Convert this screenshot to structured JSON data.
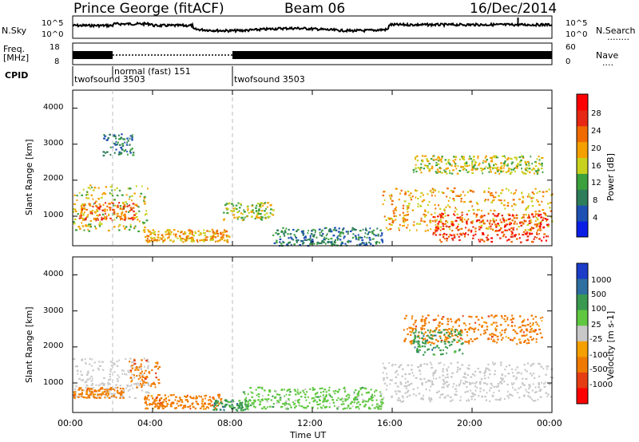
{
  "header": {
    "site": "Prince George (fitACF)",
    "beam": "Beam 06",
    "date": "16/Dec/2014"
  },
  "noise_panel": {
    "left_label": "N.Sky",
    "right_label": "N.Search",
    "right_dots": "........",
    "ticks_left": [
      "10^5",
      "10^0"
    ],
    "ticks_right": [
      "10^5",
      "10^0"
    ]
  },
  "freq_panel": {
    "left_label_1": "Freq.",
    "left_label_2": "[MHz]",
    "right_label": "Nave",
    "right_dots": "....",
    "ticks_left": [
      "18",
      "8"
    ],
    "ticks_right": [
      "60",
      "0"
    ]
  },
  "cpid": {
    "label": "CPID",
    "segments": [
      {
        "name": "twofsound 3503"
      },
      {
        "name": "normal (fast) 151"
      },
      {
        "name": "twofsound 3503"
      }
    ]
  },
  "power_panel": {
    "ylabel": "Slant Range [km]",
    "yticks": [
      "1000",
      "2000",
      "3000",
      "4000"
    ],
    "colorbar_label": "Power [dB]",
    "colorbar_ticks": [
      "4",
      "8",
      "12",
      "16",
      "20",
      "24",
      "28"
    ],
    "colors": [
      "#0a1ee6",
      "#1e50b4",
      "#2d7d5a",
      "#3ca03c",
      "#c8d21e",
      "#f5a000",
      "#f06a00",
      "#e62814",
      "#ff0000"
    ]
  },
  "velocity_panel": {
    "ylabel": "Slant Range [km]",
    "yticks": [
      "1000",
      "2000",
      "3000",
      "4000"
    ],
    "colorbar_label": "Velocity [m s-1]",
    "colorbar_ticks": [
      "1000",
      "500",
      "100",
      "25",
      "-25",
      "-100",
      "-500",
      "-1000"
    ],
    "colors": [
      "#1a3cc8",
      "#2e6ea0",
      "#3a9a50",
      "#60c840",
      "#c8c8c8",
      "#f5a000",
      "#f07a00",
      "#e63c14",
      "#ff0000"
    ]
  },
  "xaxis": {
    "label": "Time UT",
    "ticks": [
      "00:00",
      "04:00",
      "08:00",
      "12:00",
      "16:00",
      "20:00",
      "00:00"
    ]
  },
  "chart_data": [
    {
      "type": "heatmap",
      "title": "Power",
      "ylabel": "Slant Range [km]",
      "xlabel": "Time UT",
      "x_range_hours": [
        0,
        24
      ],
      "y_range_km": [
        180,
        4500
      ],
      "colorbar": {
        "label": "Power [dB]",
        "ticks": [
          4,
          8,
          12,
          16,
          20,
          24,
          28
        ]
      },
      "echo_regions": [
        {
          "t_start": 0.0,
          "t_end": 3.8,
          "range_start": 600,
          "range_end": 1900,
          "power_db": 16
        },
        {
          "t_start": 0.3,
          "t_end": 3.2,
          "range_start": 900,
          "range_end": 1400,
          "power_db": 24
        },
        {
          "t_start": 1.5,
          "t_end": 3.0,
          "range_start": 2700,
          "range_end": 3300,
          "power_db": 8
        },
        {
          "t_start": 3.5,
          "t_end": 7.8,
          "range_start": 300,
          "range_end": 650,
          "power_db": 20
        },
        {
          "t_start": 7.5,
          "t_end": 10.0,
          "range_start": 900,
          "range_end": 1400,
          "power_db": 14
        },
        {
          "t_start": 10.0,
          "t_end": 15.5,
          "range_start": 200,
          "range_end": 700,
          "power_db": 8
        },
        {
          "t_start": 15.5,
          "t_end": 24.0,
          "range_start": 600,
          "range_end": 1800,
          "power_db": 18
        },
        {
          "t_start": 18.0,
          "t_end": 23.8,
          "range_start": 300,
          "range_end": 1100,
          "power_db": 28
        },
        {
          "t_start": 17.0,
          "t_end": 23.5,
          "range_start": 2200,
          "range_end": 2700,
          "power_db": 16
        }
      ]
    },
    {
      "type": "heatmap",
      "title": "Velocity",
      "ylabel": "Slant Range [km]",
      "xlabel": "Time UT",
      "x_range_hours": [
        0,
        24
      ],
      "y_range_km": [
        180,
        4500
      ],
      "colorbar": {
        "label": "Velocity [m s-1]",
        "ticks": [
          1000,
          500,
          100,
          25,
          -25,
          -100,
          -500,
          -1000
        ]
      },
      "echo_regions": [
        {
          "t_start": 0.0,
          "t_end": 3.8,
          "range_start": 600,
          "range_end": 1700,
          "velocity": 0
        },
        {
          "t_start": 2.8,
          "t_end": 4.3,
          "range_start": 900,
          "range_end": 1700,
          "velocity": -100
        },
        {
          "t_start": 0.0,
          "t_end": 2.5,
          "range_start": 600,
          "range_end": 900,
          "velocity": -100
        },
        {
          "t_start": 3.5,
          "t_end": 7.5,
          "range_start": 300,
          "range_end": 700,
          "velocity": -100
        },
        {
          "t_start": 7.0,
          "t_end": 8.8,
          "range_start": 250,
          "range_end": 550,
          "velocity": 100
        },
        {
          "t_start": 8.5,
          "t_end": 15.5,
          "range_start": 300,
          "range_end": 900,
          "velocity": 25
        },
        {
          "t_start": 15.5,
          "t_end": 24.0,
          "range_start": 500,
          "range_end": 1600,
          "velocity": 0
        },
        {
          "t_start": 16.5,
          "t_end": 23.5,
          "range_start": 2100,
          "range_end": 2900,
          "velocity": -100
        },
        {
          "t_start": 17.0,
          "t_end": 19.5,
          "range_start": 1800,
          "range_end": 2500,
          "velocity": 100
        }
      ]
    }
  ]
}
